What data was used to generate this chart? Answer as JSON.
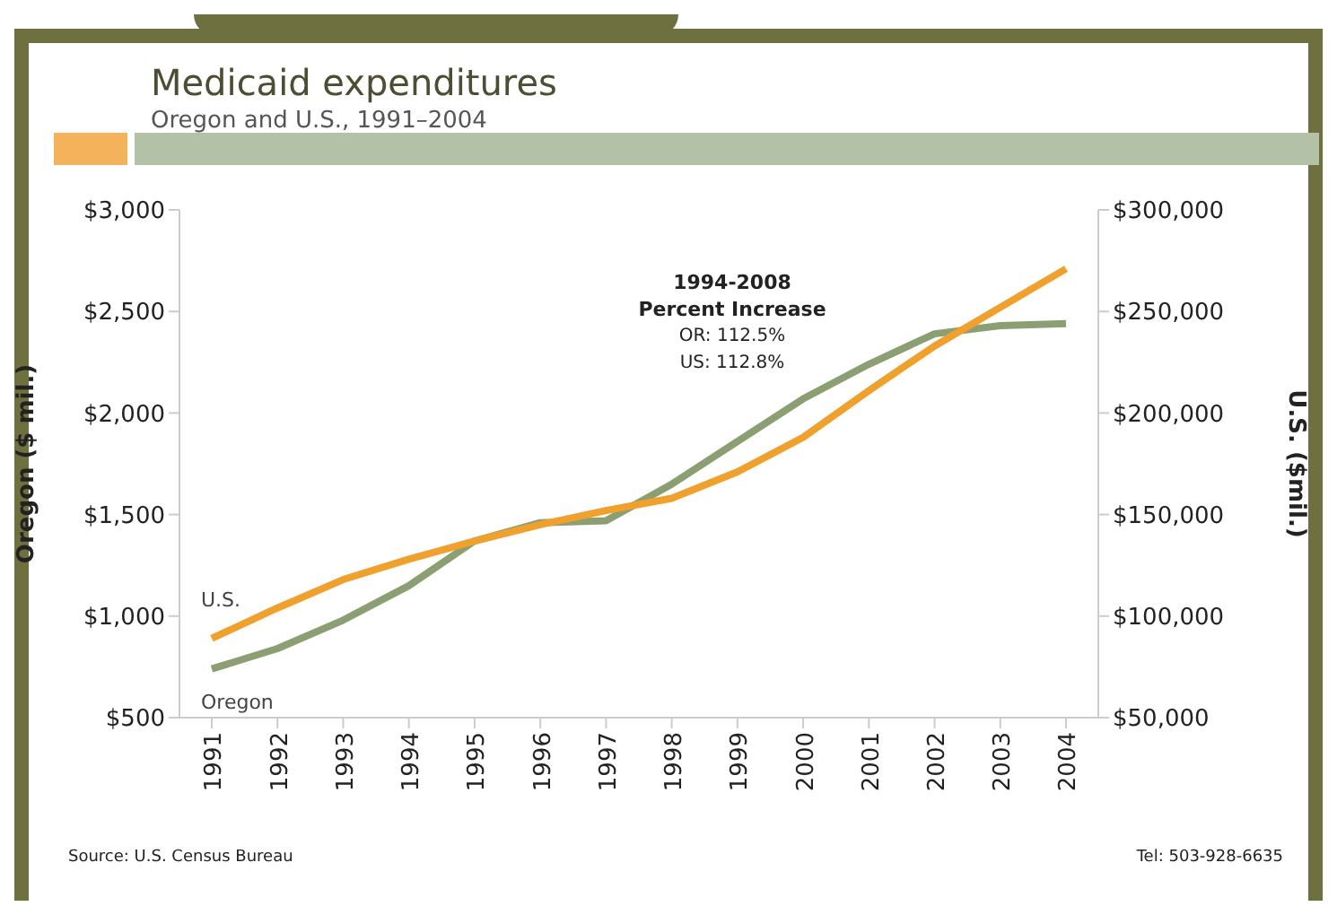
{
  "chart_data": {
    "type": "line",
    "title": "Medicaid expenditures",
    "subtitle": "Oregon and U.S., 1991–2004",
    "ylabel": "Oregon ($ mil.)",
    "y2label": "U.S. ($mil.)",
    "categories": [
      "1991",
      "1992",
      "1993",
      "1994",
      "1995",
      "1996",
      "1997",
      "1998",
      "1999",
      "2000",
      "2001",
      "2002",
      "2003",
      "2004"
    ],
    "series": [
      {
        "name": "Oregon",
        "color": "#8c9f72",
        "values": [
          740,
          840,
          980,
          1150,
          1370,
          1460,
          1470,
          1650,
          1860,
          2070,
          2240,
          2390,
          2430,
          2440
        ]
      },
      {
        "name": "U.S.",
        "color": "#f0a02c",
        "axis": "y2",
        "values": [
          89000,
          104000,
          118000,
          128000,
          137000,
          145000,
          152000,
          158000,
          171000,
          188000,
          211000,
          233000,
          252000,
          271000
        ]
      }
    ],
    "ylim": [
      500,
      3000
    ],
    "yticks": [
      {
        "value": 500,
        "label": "$500"
      },
      {
        "value": 1000,
        "label": "$1,000"
      },
      {
        "value": 1500,
        "label": "$1,500"
      },
      {
        "value": 2000,
        "label": "$2,000"
      },
      {
        "value": 2500,
        "label": "$2,500"
      },
      {
        "value": 3000,
        "label": "$3,000"
      }
    ],
    "y2lim": [
      50000,
      300000
    ],
    "y2ticks": [
      {
        "value": 50000,
        "label": "$50,000"
      },
      {
        "value": 100000,
        "label": "$100,000"
      },
      {
        "value": 150000,
        "label": "$150,000"
      },
      {
        "value": 200000,
        "label": "$200,000"
      },
      {
        "value": 250000,
        "label": "$250,000"
      },
      {
        "value": 300000,
        "label": "$300,000"
      }
    ],
    "annotations": [
      "1994-2008",
      "Percent Increase",
      "OR: 112.5%",
      "US: 112.8%",
      "Source: U.S. Census Bureau",
      "Tel: 503-928-6635"
    ]
  }
}
